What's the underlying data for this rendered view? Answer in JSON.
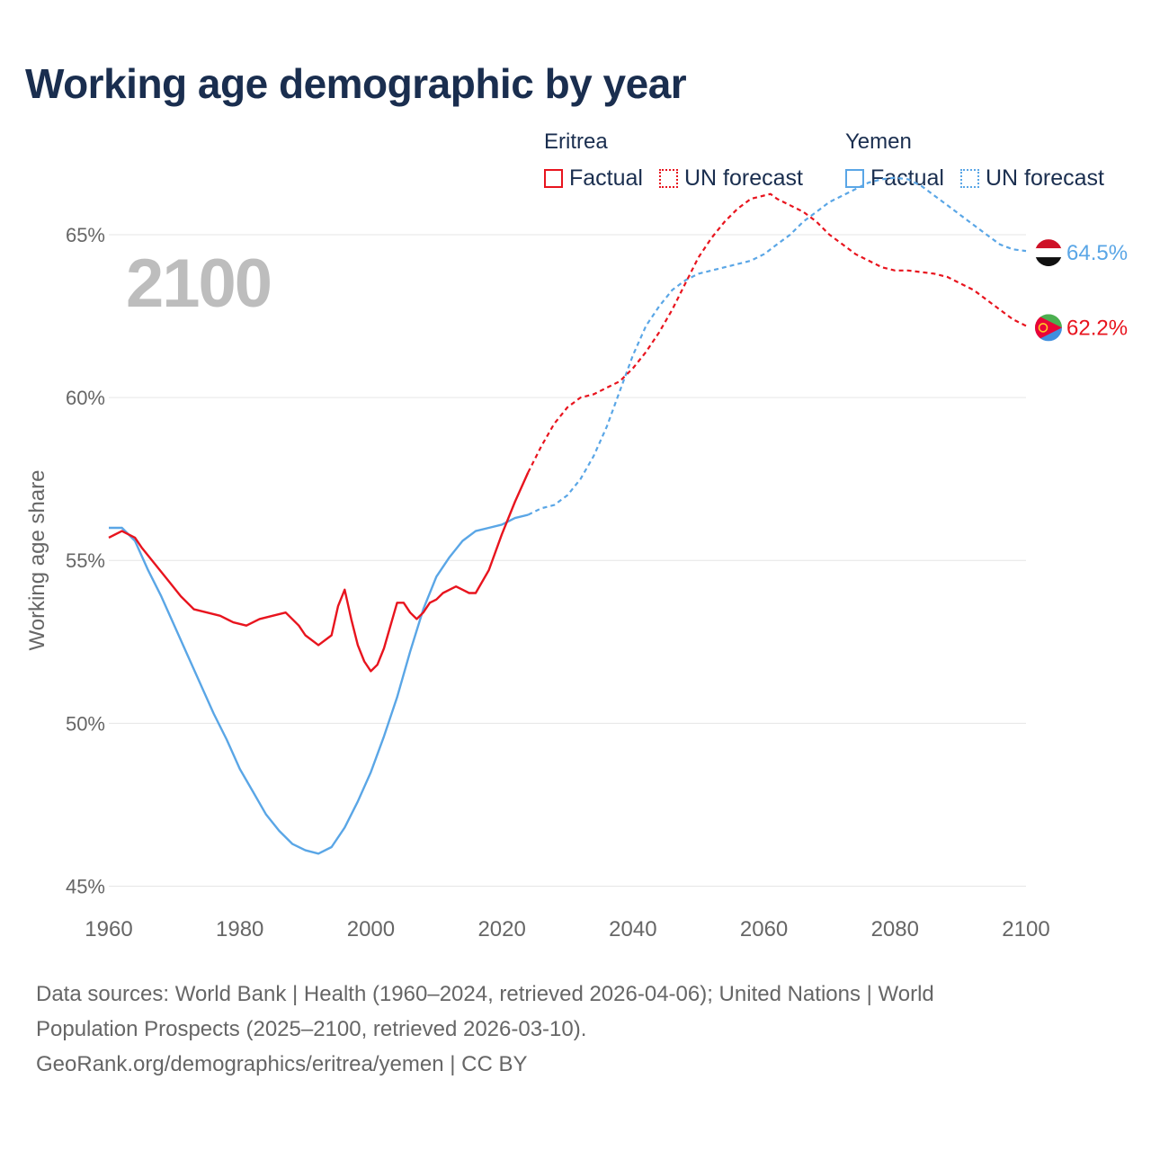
{
  "title": "Working age demographic by year",
  "year_label": "2100",
  "legend": {
    "groups": [
      {
        "name": "Eritrea",
        "factual": "Factual",
        "forecast": "UN forecast"
      },
      {
        "name": "Yemen",
        "factual": "Factual",
        "forecast": "UN forecast"
      }
    ]
  },
  "source": {
    "line1": "Data sources: World Bank | Health (1960–2024, retrieved 2026-04-06); United Nations | World",
    "line2": "Population Prospects (2025–2100, retrieved 2026-03-10).",
    "line3": "GeoRank.org/demographics/eritrea/yemen | CC BY"
  },
  "chart_data": {
    "type": "line",
    "title": "Working age demographic by year",
    "xlabel": "",
    "ylabel": "Working age share",
    "xlim": [
      1960,
      2100
    ],
    "ylim": [
      45,
      67
    ],
    "x_ticks": [
      "1960",
      "1980",
      "2000",
      "2020",
      "2040",
      "2060",
      "2080",
      "2100"
    ],
    "x_tick_values": [
      1960,
      1980,
      2000,
      2020,
      2040,
      2060,
      2080,
      2100
    ],
    "y_ticks": [
      "45%",
      "50%",
      "55%",
      "60%",
      "65%"
    ],
    "y_tick_values": [
      45,
      50,
      55,
      60,
      65
    ],
    "grid": true,
    "colors": {
      "eritrea": "#e8141e",
      "yemen": "#5aa6e6",
      "grid": "#e6e6e6",
      "axis_text": "#666666"
    },
    "series": [
      {
        "name": "Eritrea",
        "color": "#e8141e",
        "end_label": "62.2%",
        "flag": "eritrea-flag",
        "factual": {
          "x": [
            1960,
            1962,
            1964,
            1965,
            1967,
            1969,
            1971,
            1973,
            1975,
            1977,
            1979,
            1981,
            1983,
            1985,
            1987,
            1989,
            1990,
            1992,
            1994,
            1995,
            1996,
            1997,
            1998,
            1999,
            2000,
            2001,
            2002,
            2004,
            2005,
            2006,
            2007,
            2008,
            2009,
            2010,
            2011,
            2012,
            2013,
            2014,
            2015,
            2016,
            2018,
            2020,
            2022,
            2024
          ],
          "y": [
            55.7,
            55.9,
            55.7,
            55.4,
            54.9,
            54.4,
            53.9,
            53.5,
            53.4,
            53.3,
            53.1,
            53.0,
            53.2,
            53.3,
            53.4,
            53.0,
            52.7,
            52.4,
            52.7,
            53.6,
            54.1,
            53.2,
            52.4,
            51.9,
            51.6,
            51.8,
            52.3,
            53.7,
            53.7,
            53.4,
            53.2,
            53.4,
            53.7,
            53.8,
            54.0,
            54.1,
            54.2,
            54.1,
            54.0,
            54.0,
            54.7,
            55.8,
            56.8,
            57.7
          ]
        },
        "forecast": {
          "x": [
            2024,
            2026,
            2028,
            2030,
            2032,
            2034,
            2036,
            2038,
            2040,
            2042,
            2044,
            2046,
            2048,
            2050,
            2052,
            2054,
            2056,
            2058,
            2060,
            2061,
            2062,
            2064,
            2066,
            2068,
            2070,
            2072,
            2074,
            2076,
            2078,
            2080,
            2082,
            2084,
            2086,
            2088,
            2090,
            2092,
            2094,
            2096,
            2098,
            2100
          ],
          "y": [
            57.7,
            58.5,
            59.2,
            59.7,
            60.0,
            60.1,
            60.3,
            60.5,
            60.9,
            61.4,
            62.0,
            62.7,
            63.5,
            64.3,
            64.9,
            65.4,
            65.8,
            66.1,
            66.2,
            66.25,
            66.1,
            65.9,
            65.7,
            65.4,
            65.0,
            64.7,
            64.4,
            64.2,
            64.0,
            63.9,
            63.9,
            63.85,
            63.8,
            63.7,
            63.5,
            63.3,
            63.0,
            62.7,
            62.4,
            62.2
          ]
        }
      },
      {
        "name": "Yemen",
        "color": "#5aa6e6",
        "end_label": "64.5%",
        "flag": "yemen-flag",
        "factual": {
          "x": [
            1960,
            1962,
            1964,
            1966,
            1968,
            1970,
            1972,
            1974,
            1976,
            1978,
            1980,
            1982,
            1984,
            1986,
            1988,
            1990,
            1992,
            1994,
            1996,
            1998,
            2000,
            2002,
            2004,
            2006,
            2008,
            2010,
            2012,
            2014,
            2016,
            2018,
            2020,
            2022,
            2024
          ],
          "y": [
            56.0,
            56.0,
            55.6,
            54.7,
            53.9,
            53.0,
            52.1,
            51.2,
            50.3,
            49.5,
            48.6,
            47.9,
            47.2,
            46.7,
            46.3,
            46.1,
            46.0,
            46.2,
            46.8,
            47.6,
            48.5,
            49.6,
            50.8,
            52.2,
            53.5,
            54.5,
            55.1,
            55.6,
            55.9,
            56.0,
            56.1,
            56.3,
            56.4
          ]
        },
        "forecast": {
          "x": [
            2024,
            2026,
            2028,
            2030,
            2032,
            2034,
            2036,
            2038,
            2040,
            2042,
            2044,
            2046,
            2048,
            2050,
            2052,
            2054,
            2056,
            2058,
            2060,
            2062,
            2064,
            2066,
            2068,
            2070,
            2072,
            2074,
            2076,
            2078,
            2080,
            2082,
            2084,
            2086,
            2088,
            2090,
            2092,
            2094,
            2096,
            2098,
            2100
          ],
          "y": [
            56.4,
            56.6,
            56.7,
            57.0,
            57.5,
            58.2,
            59.1,
            60.2,
            61.3,
            62.2,
            62.8,
            63.3,
            63.6,
            63.8,
            63.9,
            64.0,
            64.1,
            64.2,
            64.4,
            64.7,
            65.0,
            65.4,
            65.7,
            66.0,
            66.2,
            66.4,
            66.6,
            66.7,
            66.75,
            66.7,
            66.5,
            66.2,
            65.9,
            65.6,
            65.3,
            65.0,
            64.7,
            64.55,
            64.5
          ]
        }
      }
    ]
  }
}
